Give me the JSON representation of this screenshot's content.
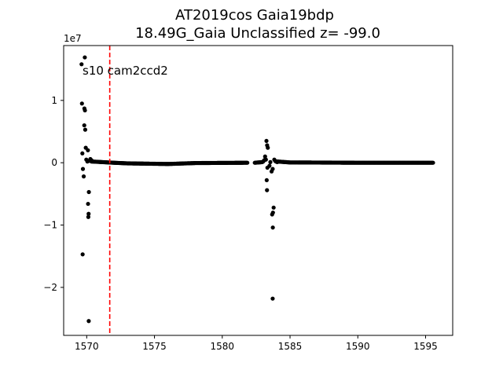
{
  "chart_data": {
    "type": "scatter",
    "title": "AT2019cos  Gaia19bdp",
    "subtitle": "18.49G_Gaia Unclassified z= -99.0",
    "annotation": "s10 cam2ccd2",
    "y_offset_label": "1e7",
    "xlim": [
      1568.3,
      1597.0
    ],
    "ylim": [
      -2.77,
      1.88
    ],
    "x_ticks": [
      1570,
      1575,
      1580,
      1585,
      1590,
      1595
    ],
    "x_tick_labels": [
      "1570",
      "1575",
      "1580",
      "1585",
      "1590",
      "1595"
    ],
    "y_ticks": [
      -2,
      -1,
      0,
      1
    ],
    "y_tick_labels": [
      "−2",
      "−1",
      "0",
      "1"
    ],
    "vline": {
      "x": 1571.7,
      "color": "#ff0000",
      "style": "dashed"
    },
    "point_color": "#000000",
    "grid": false,
    "scatter_points": [
      [
        1569.62,
        1.58
      ],
      [
        1569.65,
        0.95
      ],
      [
        1569.68,
        0.15
      ],
      [
        1569.72,
        -0.1
      ],
      [
        1569.78,
        -0.22
      ],
      [
        1569.7,
        -1.47
      ],
      [
        1569.82,
        0.6
      ],
      [
        1569.86,
        1.69
      ],
      [
        1569.83,
        0.87
      ],
      [
        1569.87,
        0.84
      ],
      [
        1569.89,
        0.53
      ],
      [
        1569.93,
        0.24
      ],
      [
        1569.97,
        0.05
      ],
      [
        1570.05,
        0.02
      ],
      [
        1570.09,
        0.2
      ],
      [
        1570.12,
        -0.87
      ],
      [
        1570.14,
        -0.82
      ],
      [
        1570.1,
        -0.66
      ],
      [
        1570.16,
        -0.47
      ],
      [
        1570.2,
        0.03
      ],
      [
        1570.27,
        0.06
      ],
      [
        1570.35,
        0.04
      ],
      [
        1570.15,
        -2.54
      ],
      [
        1583.02,
        0.02
      ],
      [
        1583.1,
        0.04
      ],
      [
        1583.16,
        0.1
      ],
      [
        1583.22,
        0.05
      ],
      [
        1583.26,
        0.35
      ],
      [
        1583.31,
        0.28
      ],
      [
        1583.36,
        0.24
      ],
      [
        1583.28,
        -0.28
      ],
      [
        1583.3,
        -0.44
      ],
      [
        1583.33,
        -0.08
      ],
      [
        1583.48,
        -0.05
      ],
      [
        1583.55,
        0.01
      ],
      [
        1583.64,
        -0.14
      ],
      [
        1583.72,
        -0.1
      ],
      [
        1583.68,
        -0.83
      ],
      [
        1583.74,
        -0.8
      ],
      [
        1583.79,
        -0.72
      ],
      [
        1583.73,
        -1.04
      ],
      [
        1583.72,
        -2.18
      ],
      [
        1583.84,
        0.05
      ],
      [
        1583.9,
        0.03
      ],
      [
        1583.96,
        0.02
      ],
      [
        1584.05,
        0.01
      ]
    ],
    "dense_series": [
      {
        "x_start": 1570.35,
        "x_end": 1581.85,
        "step": 0.05,
        "y_nodes": [
          [
            1570.35,
            0.02
          ],
          [
            1572.0,
            0.0
          ],
          [
            1573.0,
            -0.01
          ],
          [
            1576.0,
            -0.02
          ],
          [
            1578.0,
            -0.005
          ],
          [
            1581.85,
            0.0
          ]
        ]
      },
      {
        "x_start": 1582.4,
        "x_end": 1582.95,
        "step": 0.05,
        "y_nodes": [
          [
            1582.4,
            0.0
          ],
          [
            1582.95,
            0.01
          ]
        ]
      },
      {
        "x_start": 1584.05,
        "x_end": 1595.55,
        "step": 0.05,
        "y_nodes": [
          [
            1584.05,
            0.02
          ],
          [
            1585.0,
            0.005
          ],
          [
            1590.0,
            0.0
          ],
          [
            1595.55,
            0.0
          ]
        ]
      }
    ]
  }
}
